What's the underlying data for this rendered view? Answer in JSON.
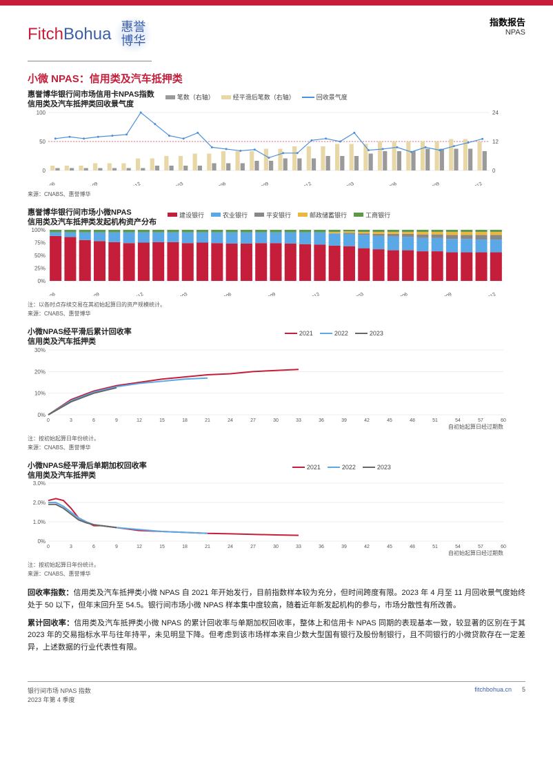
{
  "header": {
    "logo_fitch": "Fitch",
    "logo_bohua": "Bohua",
    "logo_cn1": "惠誉",
    "logo_cn2": "博华",
    "right_title": "指数报告",
    "right_sub": "NPAS"
  },
  "section_title": "小微 NPAS：信用类及汽车抵押类",
  "chart1": {
    "type": "combo-bar-line",
    "title_l1": "惠誉博华银行间市场信用卡NPAS指数",
    "title_l2": "信用类及汽车抵押类回收景气度",
    "legend": [
      {
        "label": "笔数（右轴）",
        "color": "#9a9a9a",
        "kind": "swatch"
      },
      {
        "label": "经平滑后笔数（右轴）",
        "color": "#e8d8a8",
        "kind": "swatch"
      },
      {
        "label": "回收景气度",
        "color": "#4a90d9",
        "kind": "line"
      }
    ],
    "x_categories": [
      "202106",
      "202107",
      "202108",
      "202109",
      "202110",
      "202111",
      "202112",
      "202201",
      "202202",
      "202203",
      "202204",
      "202205",
      "202206",
      "202207",
      "202208",
      "202209",
      "202210",
      "202211",
      "202212",
      "202301",
      "202302",
      "202303",
      "202304",
      "202305",
      "202306",
      "202307",
      "202308",
      "202309",
      "202310",
      "202311",
      "202312"
    ],
    "x_ticks_shown": [
      "202106",
      "202109",
      "202112",
      "202203",
      "202206",
      "202209",
      "202212",
      "202303",
      "202306",
      "202309",
      "202312"
    ],
    "series_bar_count": [
      1,
      1,
      1,
      1,
      1,
      1,
      1,
      2,
      2,
      2,
      2,
      3,
      3,
      3,
      4,
      4,
      5,
      5,
      5,
      6,
      6,
      6,
      7,
      8,
      8,
      8,
      9,
      9,
      9,
      9,
      8
    ],
    "series_bar_smooth": [
      2,
      2,
      2,
      3,
      3,
      3,
      5,
      5,
      6,
      6,
      7,
      7,
      8,
      8,
      8,
      9,
      9,
      10,
      10,
      10,
      11,
      11,
      11,
      12,
      12,
      12,
      12,
      12,
      13,
      13,
      12
    ],
    "series_line_recovery": [
      55,
      58,
      55,
      58,
      60,
      62,
      100,
      80,
      60,
      55,
      65,
      40,
      37,
      34,
      36,
      22,
      30,
      30,
      52,
      55,
      50,
      65,
      35,
      37,
      40,
      32,
      40,
      35,
      42,
      48,
      54.5
    ],
    "yleft_max": 100,
    "yleft_ticks": [
      0,
      50,
      100
    ],
    "yright_max": 24,
    "yright_ticks": [
      0,
      12,
      24
    ],
    "ref_line_left": 50,
    "ref_line_color": "#d04a6b",
    "bg": "#ffffff",
    "grid_color": "#dcdcdc",
    "label_fontsize": 8,
    "source": "来源：CNABS、惠誉博华"
  },
  "chart2": {
    "type": "stacked-bar",
    "title_l1": "惠誉博华银行间市场小微NPAS",
    "title_l2": "信用类及汽车抵押类发起机构资产分布",
    "legend": [
      {
        "label": "建设银行",
        "color": "#c41e3a"
      },
      {
        "label": "农业银行",
        "color": "#5aa9e6"
      },
      {
        "label": "平安银行",
        "color": "#888888"
      },
      {
        "label": "邮政储蓄银行",
        "color": "#e8b840"
      },
      {
        "label": "工商银行",
        "color": "#5a9a4a"
      }
    ],
    "x_categories": [
      "202106",
      "202107",
      "202108",
      "202109",
      "202110",
      "202111",
      "202112",
      "202201",
      "202202",
      "202203",
      "202204",
      "202205",
      "202206",
      "202207",
      "202208",
      "202209",
      "202210",
      "202211",
      "202212",
      "202301",
      "202302",
      "202303",
      "202304",
      "202305",
      "202306",
      "202307",
      "202308",
      "202309",
      "202310",
      "202311",
      "202312"
    ],
    "x_ticks_shown": [
      "202106",
      "202109",
      "202112",
      "202203",
      "202206",
      "202209",
      "202212",
      "202303",
      "202306",
      "202309",
      "202312"
    ],
    "stacks": [
      [
        88,
        7,
        0,
        0,
        5
      ],
      [
        86,
        9,
        0,
        0,
        5
      ],
      [
        80,
        15,
        0,
        0,
        5
      ],
      [
        78,
        17,
        0,
        0,
        5
      ],
      [
        76,
        19,
        0,
        0,
        5
      ],
      [
        74,
        21,
        0,
        0,
        5
      ],
      [
        75,
        20,
        0,
        0,
        5
      ],
      [
        76,
        19,
        0,
        0,
        5
      ],
      [
        76,
        19,
        0,
        0,
        5
      ],
      [
        74,
        21,
        0,
        0,
        5
      ],
      [
        75,
        20,
        0,
        0,
        5
      ],
      [
        74,
        21,
        0,
        0,
        5
      ],
      [
        73,
        22,
        0,
        0,
        5
      ],
      [
        73,
        22,
        0,
        0,
        5
      ],
      [
        74,
        21,
        0,
        0,
        5
      ],
      [
        74,
        21,
        0,
        0,
        5
      ],
      [
        73,
        22,
        0,
        0,
        5
      ],
      [
        72,
        23,
        0,
        0,
        5
      ],
      [
        71,
        24,
        0,
        0,
        5
      ],
      [
        69,
        24,
        0,
        3,
        4
      ],
      [
        68,
        24,
        2,
        3,
        3
      ],
      [
        64,
        26,
        3,
        3,
        4
      ],
      [
        62,
        26,
        4,
        4,
        4
      ],
      [
        60,
        27,
        5,
        4,
        4
      ],
      [
        60,
        26,
        6,
        4,
        4
      ],
      [
        58,
        26,
        7,
        5,
        4
      ],
      [
        58,
        26,
        7,
        5,
        4
      ],
      [
        56,
        26,
        8,
        6,
        4
      ],
      [
        56,
        26,
        8,
        6,
        4
      ],
      [
        56,
        25,
        9,
        6,
        4
      ],
      [
        56,
        25,
        9,
        6,
        4
      ]
    ],
    "y_max": 100,
    "y_ticks": [
      "0%",
      "25%",
      "50%",
      "75%",
      "100%"
    ],
    "note": "注：以各时点存续交易在其初始起算日的资产规模统计。",
    "source": "来源：CNABS、惠誉博华",
    "bg": "#ffffff"
  },
  "chart3": {
    "type": "line",
    "title_l1": "小微NPAS经平滑后累计回收率",
    "title_l2": "信用类及汽车抵押类",
    "legend": [
      {
        "label": "2021",
        "color": "#c41e3a"
      },
      {
        "label": "2022",
        "color": "#5aa9e6"
      },
      {
        "label": "2023",
        "color": "#666666"
      }
    ],
    "x_ticks": [
      0,
      3,
      6,
      9,
      12,
      15,
      18,
      21,
      24,
      27,
      30,
      33,
      36,
      39,
      42,
      45,
      48,
      51,
      54,
      57,
      60
    ],
    "x_max": 60,
    "y_max": 30,
    "y_ticks": [
      "0%",
      "10%",
      "20%",
      "30%"
    ],
    "series": {
      "2021": [
        [
          0,
          0
        ],
        [
          3,
          7
        ],
        [
          6,
          11
        ],
        [
          9,
          13.5
        ],
        [
          12,
          15
        ],
        [
          15,
          16.5
        ],
        [
          18,
          17.5
        ],
        [
          21,
          18.5
        ],
        [
          24,
          19
        ],
        [
          27,
          20
        ],
        [
          30,
          20.5
        ],
        [
          33,
          21
        ]
      ],
      "2022": [
        [
          0,
          0
        ],
        [
          3,
          6.5
        ],
        [
          6,
          10.5
        ],
        [
          9,
          13
        ],
        [
          12,
          14.5
        ],
        [
          15,
          15.5
        ],
        [
          18,
          16.5
        ],
        [
          21,
          17
        ]
      ],
      "2023": [
        [
          0,
          0
        ],
        [
          3,
          6
        ],
        [
          6,
          10
        ],
        [
          9,
          12.5
        ]
      ]
    },
    "xlabel": "自初始起算日经过期数",
    "note": "注：按初始起算日年份统计。",
    "source": "来源：CNABS、惠誉博华",
    "line_width": 2,
    "bg": "#ffffff",
    "grid_color": "#dcdcdc"
  },
  "chart4": {
    "type": "line",
    "title_l1": "小微NPAS经平滑后单期加权回收率",
    "title_l2": "信用类及汽车抵押类",
    "legend": [
      {
        "label": "2021",
        "color": "#c41e3a"
      },
      {
        "label": "2022",
        "color": "#5aa9e6"
      },
      {
        "label": "2023",
        "color": "#666666"
      }
    ],
    "x_ticks": [
      0,
      3,
      6,
      9,
      12,
      15,
      18,
      21,
      24,
      27,
      30,
      33,
      36,
      39,
      42,
      45,
      48,
      51,
      54,
      57,
      60
    ],
    "x_max": 60,
    "y_max": 3.0,
    "y_ticks": [
      "0%",
      "1.0%",
      "2.0%",
      "3.0%"
    ],
    "series": {
      "2021": [
        [
          0,
          2.1
        ],
        [
          1,
          2.2
        ],
        [
          2,
          2.1
        ],
        [
          3,
          1.7
        ],
        [
          4,
          1.2
        ],
        [
          5,
          1.0
        ],
        [
          6,
          0.8
        ],
        [
          7,
          0.8
        ],
        [
          8,
          0.75
        ],
        [
          9,
          0.7
        ],
        [
          12,
          0.55
        ],
        [
          15,
          0.5
        ],
        [
          18,
          0.45
        ],
        [
          21,
          0.4
        ],
        [
          24,
          0.38
        ],
        [
          27,
          0.35
        ],
        [
          30,
          0.32
        ],
        [
          33,
          0.3
        ]
      ],
      "2022": [
        [
          0,
          2.0
        ],
        [
          1,
          2.0
        ],
        [
          2,
          1.8
        ],
        [
          3,
          1.5
        ],
        [
          4,
          1.2
        ],
        [
          5,
          1.0
        ],
        [
          6,
          0.85
        ],
        [
          7,
          0.8
        ],
        [
          9,
          0.7
        ],
        [
          12,
          0.6
        ],
        [
          15,
          0.5
        ],
        [
          18,
          0.45
        ],
        [
          21,
          0.4
        ]
      ],
      "2023": [
        [
          0,
          1.9
        ],
        [
          1,
          1.9
        ],
        [
          2,
          1.7
        ],
        [
          3,
          1.4
        ],
        [
          4,
          1.1
        ],
        [
          5,
          0.95
        ],
        [
          6,
          0.85
        ],
        [
          9,
          0.7
        ]
      ]
    },
    "xlabel": "自初始起算日经过期数",
    "note": "注：按初始起算日年份统计。",
    "source": "来源：CNABS、惠誉博华",
    "line_width": 2,
    "bg": "#ffffff",
    "grid_color": "#dcdcdc"
  },
  "body": {
    "p1_label": "回收率指数：",
    "p1_text": "信用类及汽车抵押类小微 NPAS 自 2021 年开始发行，目前指数样本较为充分，但时间跨度有限。2023 年 4 月至 11 月回收景气度始终处于 50 以下，但年末回升至 54.5。银行间市场小微 NPAS 样本集中度较高，随着近年新发起机构的参与，市场分散性有所改善。",
    "p2_label": "累计回收率：",
    "p2_text": "信用类及汽车抵押类小微 NPAS 的累计回收率与单期加权回收率，整体上和信用卡 NPAS 同期的表现基本一致，较显著的区别在于其 2023 年的交易指标水平与往年持平，未见明显下降。但考虑到该市场样本来自少数大型国有银行及股份制银行，且不同银行的小微贷款存在一定差异，上述数据的行业代表性有限。"
  },
  "footer": {
    "left_l1": "银行间市场 NPAS 指数",
    "left_l2": "2023 年第 4 季度",
    "right": "fitchbohua.cn",
    "page": "5"
  },
  "colors": {
    "accent_red": "#c41e3a",
    "accent_blue": "#3a5fa8",
    "text": "#222222",
    "muted": "#555555"
  }
}
